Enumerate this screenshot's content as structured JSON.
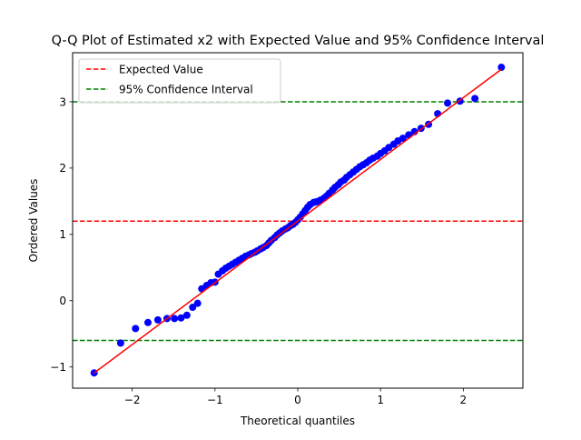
{
  "chart_data": {
    "type": "scatter",
    "title": "Q-Q Plot of Estimated x2 with Expected Value and 95% Confidence Interval",
    "xlabel": "Theoretical quantiles",
    "ylabel": "Ordered Values",
    "xlim": [
      -2.72,
      2.72
    ],
    "ylim": [
      -1.32,
      3.74
    ],
    "xticks": [
      -2,
      -1,
      0,
      1,
      2
    ],
    "yticks": [
      -1,
      0,
      1,
      2,
      3
    ],
    "xtick_labels": [
      "−2",
      "−1",
      "0",
      "1",
      "2"
    ],
    "ytick_labels": [
      "−1",
      "0",
      "1",
      "2",
      "3"
    ],
    "grid": false,
    "legend_position": "top-left",
    "legend": [
      {
        "label": "Expected Value",
        "color": "#ff0000",
        "style": "dashed"
      },
      {
        "label": "95% Confidence Interval",
        "color": "#008000",
        "style": "dashed"
      }
    ],
    "hlines": [
      {
        "y": 1.2,
        "color": "#ff0000",
        "style": "dashed"
      },
      {
        "y": 3.0,
        "color": "#008000",
        "style": "dashed"
      },
      {
        "y": -0.6,
        "color": "#008000",
        "style": "dashed"
      }
    ],
    "fit_line": {
      "x": [
        -2.46,
        2.46
      ],
      "y": [
        -1.09,
        3.49
      ],
      "color": "#ff0000"
    },
    "points": {
      "color": "#0000ff",
      "x": [
        -2.46,
        -2.14,
        -1.96,
        -1.81,
        -1.69,
        -1.58,
        -1.49,
        -1.41,
        -1.34,
        -1.27,
        -1.21,
        -1.16,
        -1.1,
        -1.05,
        -1.0,
        -0.96,
        -0.91,
        -0.87,
        -0.83,
        -0.79,
        -0.75,
        -0.71,
        -0.67,
        -0.63,
        -0.59,
        -0.56,
        -0.52,
        -0.49,
        -0.45,
        -0.42,
        -0.38,
        -0.35,
        -0.32,
        -0.28,
        -0.25,
        -0.22,
        -0.19,
        -0.15,
        -0.12,
        -0.09,
        -0.06,
        -0.03,
        0.0,
        0.03,
        0.06,
        0.09,
        0.12,
        0.15,
        0.19,
        0.22,
        0.25,
        0.28,
        0.32,
        0.35,
        0.38,
        0.42,
        0.45,
        0.49,
        0.52,
        0.56,
        0.59,
        0.63,
        0.67,
        0.71,
        0.75,
        0.79,
        0.83,
        0.87,
        0.91,
        0.96,
        1.0,
        1.05,
        1.1,
        1.16,
        1.21,
        1.27,
        1.34,
        1.41,
        1.49,
        1.58,
        1.69,
        1.81,
        1.96,
        2.14,
        2.46
      ],
      "y": [
        -1.09,
        -0.64,
        -0.42,
        -0.33,
        -0.29,
        -0.27,
        -0.27,
        -0.26,
        -0.22,
        -0.1,
        -0.04,
        0.18,
        0.23,
        0.27,
        0.28,
        0.4,
        0.45,
        0.49,
        0.52,
        0.55,
        0.58,
        0.61,
        0.64,
        0.67,
        0.69,
        0.71,
        0.73,
        0.75,
        0.78,
        0.8,
        0.83,
        0.87,
        0.91,
        0.95,
        0.99,
        1.02,
        1.05,
        1.08,
        1.1,
        1.13,
        1.15,
        1.18,
        1.22,
        1.26,
        1.31,
        1.36,
        1.41,
        1.45,
        1.48,
        1.49,
        1.5,
        1.52,
        1.55,
        1.58,
        1.62,
        1.67,
        1.71,
        1.75,
        1.79,
        1.82,
        1.86,
        1.9,
        1.94,
        1.98,
        2.02,
        2.05,
        2.08,
        2.12,
        2.15,
        2.18,
        2.22,
        2.26,
        2.31,
        2.36,
        2.41,
        2.45,
        2.5,
        2.55,
        2.6,
        2.66,
        2.82,
        2.98,
        3.01,
        3.05,
        3.52
      ]
    }
  }
}
